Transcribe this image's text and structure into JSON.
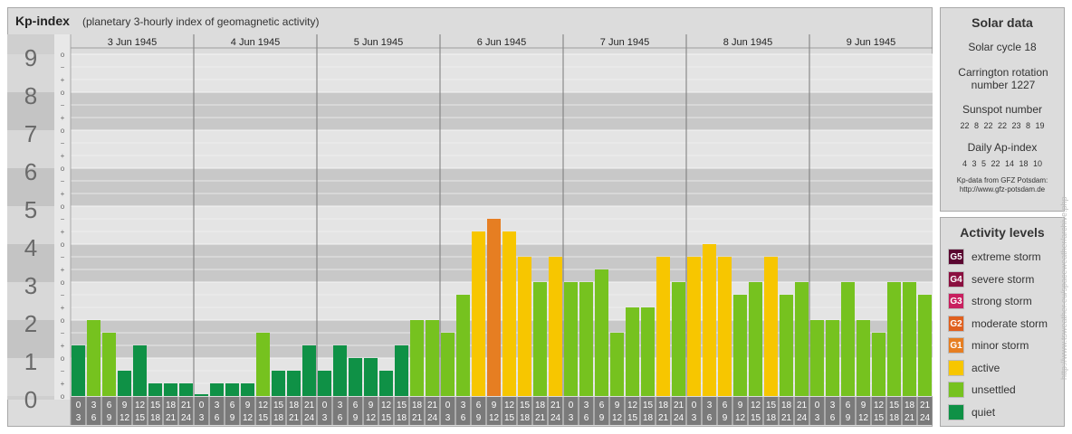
{
  "header": {
    "title": "Kp-index",
    "subtitle": "(planetary 3-hourly index of geomagnetic activity)"
  },
  "chart_data": {
    "type": "bar",
    "title": "Kp-index",
    "subtitle": "(planetary 3-hourly index of geomagnetic activity)",
    "ylim": [
      0,
      9
    ],
    "y_ticks": [
      "0",
      "1",
      "2",
      "3",
      "4",
      "5",
      "6",
      "7",
      "8",
      "9"
    ],
    "sub_ticks": [
      "+",
      "o",
      "−"
    ],
    "days": [
      "3 Jun 1945",
      "4 Jun 1945",
      "5 Jun 1945",
      "6 Jun 1945",
      "7 Jun 1945",
      "8 Jun 1945",
      "9 Jun 1945"
    ],
    "interval_starts": [
      "0",
      "3",
      "6",
      "9",
      "12",
      "15",
      "18",
      "21"
    ],
    "interval_ends": [
      "3",
      "6",
      "9",
      "12",
      "15",
      "18",
      "21",
      "24"
    ],
    "values": [
      1.333,
      2.0,
      1.667,
      0.667,
      1.333,
      0.333,
      0.333,
      0.333,
      0.0,
      0.333,
      0.333,
      0.333,
      1.667,
      0.667,
      0.667,
      1.333,
      0.667,
      1.333,
      1.0,
      1.0,
      0.667,
      1.333,
      2.0,
      2.0,
      1.667,
      2.667,
      4.333,
      4.667,
      4.333,
      3.667,
      3.0,
      3.667,
      3.0,
      3.0,
      3.333,
      1.667,
      2.333,
      2.333,
      3.667,
      3.0,
      3.667,
      4.0,
      3.667,
      2.667,
      3.0,
      3.667,
      2.667,
      3.0,
      2.0,
      2.0,
      3.0,
      2.0,
      1.667,
      3.0,
      3.0,
      2.667
    ],
    "level_colors": {
      "quiet": "#0f9146",
      "unsettled": "#76c21f",
      "active": "#f7c600",
      "G1": "#e67e22",
      "G2": "#e0601f",
      "G3": "#c8205f",
      "G4": "#8b1040",
      "G5": "#5a0530"
    },
    "grid": true,
    "legend_position": "right"
  },
  "solar_data": {
    "title": "Solar data",
    "solar_cycle": "Solar cycle 18",
    "carrington": "Carrington rotation number 1227",
    "sunspot_label": "Sunspot number",
    "sunspot_values": "22 8 22 22 23 8 19",
    "ap_label": "Daily Ap-index",
    "ap_values": "4 3 5 22 14 18 10",
    "credit_line1": "Kp-data from GFZ Potsdam:",
    "credit_line2": "http://www.gfz-potsdam.de"
  },
  "legend": {
    "title": "Activity levels",
    "items": [
      {
        "badge": "G5",
        "label": "extreme storm",
        "color": "#5a0530"
      },
      {
        "badge": "G4",
        "label": "severe storm",
        "color": "#8b1040"
      },
      {
        "badge": "G3",
        "label": "strong storm",
        "color": "#c8205f"
      },
      {
        "badge": "G2",
        "label": "moderate storm",
        "color": "#e0601f"
      },
      {
        "badge": "G1",
        "label": "minor storm",
        "color": "#e67e22"
      },
      {
        "badge": "",
        "label": "active",
        "color": "#f7c600"
      },
      {
        "badge": "",
        "label": "unsettled",
        "color": "#76c21f"
      },
      {
        "badge": "",
        "label": "quiet",
        "color": "#0f9146"
      }
    ]
  },
  "watermark": "http://www.tsweather.eu/spaceweather/archive.php"
}
